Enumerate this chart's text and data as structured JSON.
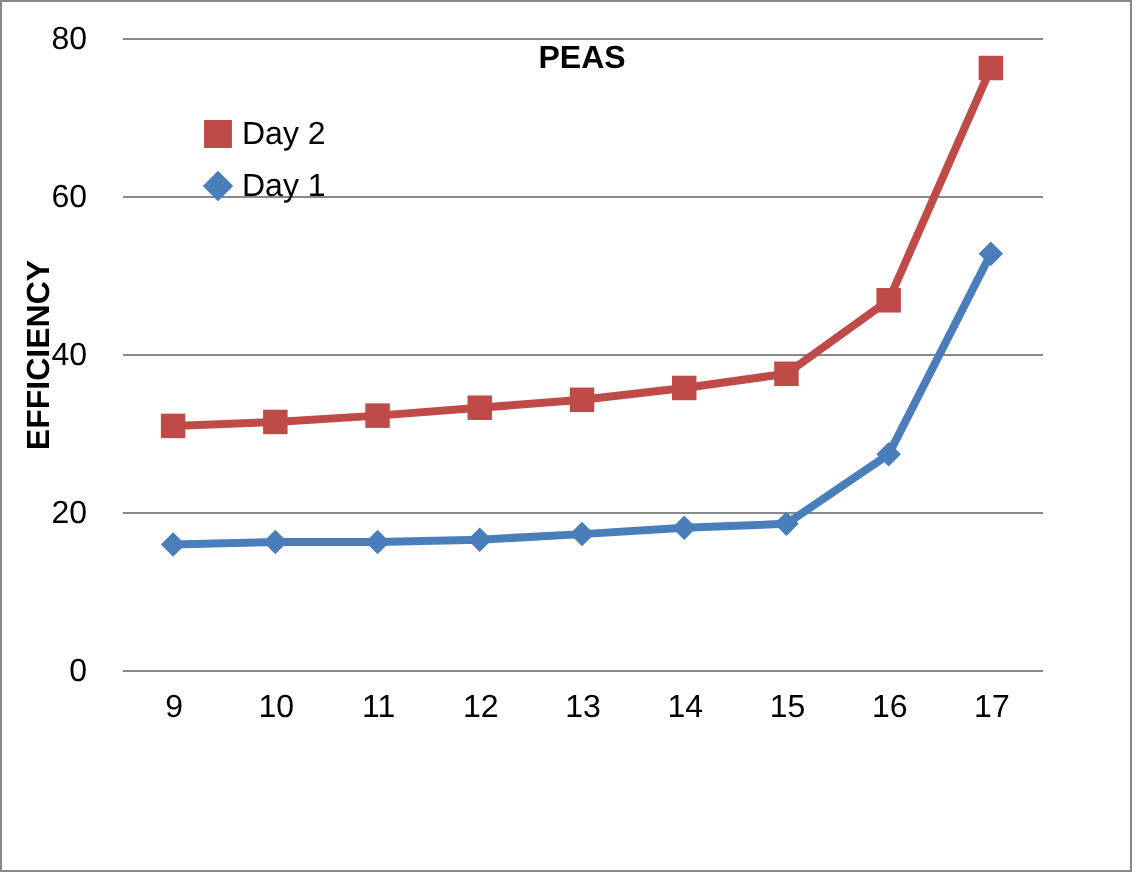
{
  "chart_data": {
    "type": "line",
    "title": "PEAS",
    "ylabel": "EFFICIENCY",
    "categories": [
      "9",
      "10",
      "11",
      "12",
      "13",
      "14",
      "15",
      "16",
      "17"
    ],
    "series": [
      {
        "name": "Day 2",
        "color": "#be4b48",
        "marker": "square",
        "values": [
          30.9,
          31.4,
          32.2,
          33.2,
          34.2,
          35.7,
          37.5,
          46.8,
          76.2
        ]
      },
      {
        "name": "Day 1",
        "color": "#4a7ebb",
        "marker": "diamond",
        "values": [
          15.9,
          16.2,
          16.2,
          16.5,
          17.2,
          18,
          18.5,
          27.3,
          52.7
        ]
      }
    ],
    "ylim": [
      0,
      80
    ],
    "yticks": [
      0,
      20,
      40,
      60,
      80
    ],
    "grid": "y",
    "legend": "top left"
  }
}
